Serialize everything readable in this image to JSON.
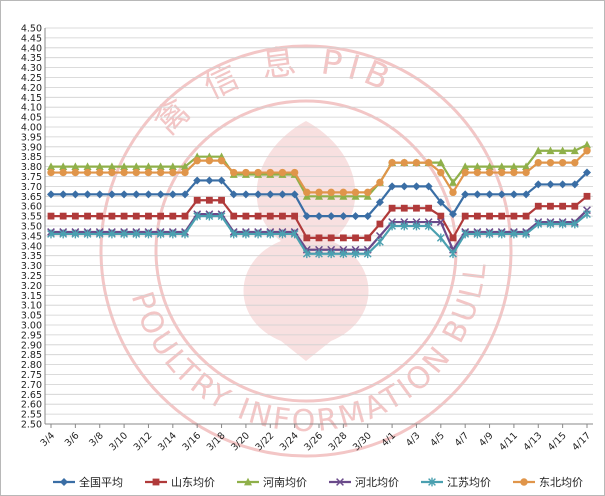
{
  "chart_data": {
    "type": "line",
    "title": "",
    "xlabel": "",
    "ylabel": "",
    "ylim": [
      2.5,
      4.5
    ],
    "ytick_step": 0.05,
    "grid": true,
    "legend": "bottom",
    "x": [
      "3/4",
      "3/5",
      "3/6",
      "3/7",
      "3/8",
      "3/9",
      "3/10",
      "3/11",
      "3/12",
      "3/13",
      "3/14",
      "3/15",
      "3/16",
      "3/17",
      "3/18",
      "3/19",
      "3/20",
      "3/21",
      "3/22",
      "3/23",
      "3/24",
      "3/25",
      "3/26",
      "3/27",
      "3/28",
      "3/29",
      "3/30",
      "3/31",
      "4/1",
      "4/2",
      "4/3",
      "4/4",
      "4/5",
      "4/6",
      "4/7",
      "4/8",
      "4/9",
      "4/10",
      "4/11",
      "4/12",
      "4/13",
      "4/14",
      "4/15",
      "4/16",
      "4/17"
    ],
    "x_tick_labels": [
      "3/4",
      "3/6",
      "3/8",
      "3/10",
      "3/12",
      "3/14",
      "3/16",
      "3/18",
      "3/20",
      "3/22",
      "3/24",
      "3/26",
      "3/28",
      "3/30",
      "4/1",
      "4/3",
      "4/5",
      "4/7",
      "4/9",
      "4/11",
      "4/13",
      "4/15",
      "4/17"
    ],
    "series": [
      {
        "name": "全国平均",
        "color": "#3a6ea5",
        "marker": "diamond",
        "values": [
          3.66,
          3.66,
          3.66,
          3.66,
          3.66,
          3.66,
          3.66,
          3.66,
          3.66,
          3.66,
          3.66,
          3.66,
          3.73,
          3.73,
          3.73,
          3.66,
          3.66,
          3.66,
          3.66,
          3.66,
          3.66,
          3.55,
          3.55,
          3.55,
          3.55,
          3.55,
          3.55,
          3.62,
          3.7,
          3.7,
          3.7,
          3.7,
          3.62,
          3.56,
          3.66,
          3.66,
          3.66,
          3.66,
          3.66,
          3.66,
          3.71,
          3.71,
          3.71,
          3.71,
          3.77
        ]
      },
      {
        "name": "山东均价",
        "color": "#b03a3a",
        "marker": "square",
        "values": [
          3.55,
          3.55,
          3.55,
          3.55,
          3.55,
          3.55,
          3.55,
          3.55,
          3.55,
          3.55,
          3.55,
          3.55,
          3.63,
          3.63,
          3.63,
          3.55,
          3.55,
          3.55,
          3.55,
          3.55,
          3.55,
          3.44,
          3.44,
          3.44,
          3.44,
          3.44,
          3.44,
          3.51,
          3.59,
          3.59,
          3.59,
          3.59,
          3.55,
          3.44,
          3.55,
          3.55,
          3.55,
          3.55,
          3.55,
          3.55,
          3.6,
          3.6,
          3.6,
          3.6,
          3.65
        ]
      },
      {
        "name": "河南均价",
        "color": "#8fb04a",
        "marker": "triangle",
        "values": [
          3.8,
          3.8,
          3.8,
          3.8,
          3.8,
          3.8,
          3.8,
          3.8,
          3.8,
          3.8,
          3.8,
          3.8,
          3.85,
          3.85,
          3.85,
          3.76,
          3.76,
          3.76,
          3.76,
          3.76,
          3.76,
          3.65,
          3.65,
          3.65,
          3.65,
          3.65,
          3.65,
          3.72,
          3.82,
          3.82,
          3.82,
          3.82,
          3.82,
          3.72,
          3.8,
          3.8,
          3.8,
          3.8,
          3.8,
          3.8,
          3.88,
          3.88,
          3.88,
          3.88,
          3.91
        ]
      },
      {
        "name": "河北均价",
        "color": "#6a4a8a",
        "marker": "x",
        "values": [
          3.47,
          3.47,
          3.47,
          3.47,
          3.47,
          3.47,
          3.47,
          3.47,
          3.47,
          3.47,
          3.47,
          3.47,
          3.56,
          3.56,
          3.56,
          3.47,
          3.47,
          3.47,
          3.47,
          3.47,
          3.47,
          3.38,
          3.38,
          3.38,
          3.38,
          3.38,
          3.38,
          3.45,
          3.52,
          3.52,
          3.52,
          3.52,
          3.52,
          3.38,
          3.47,
          3.47,
          3.47,
          3.47,
          3.47,
          3.47,
          3.52,
          3.52,
          3.52,
          3.52,
          3.58
        ]
      },
      {
        "name": "江苏均价",
        "color": "#4aa0b0",
        "marker": "star",
        "values": [
          3.46,
          3.46,
          3.46,
          3.46,
          3.46,
          3.46,
          3.46,
          3.46,
          3.46,
          3.46,
          3.46,
          3.46,
          3.55,
          3.55,
          3.55,
          3.46,
          3.46,
          3.46,
          3.46,
          3.46,
          3.46,
          3.36,
          3.36,
          3.36,
          3.36,
          3.36,
          3.36,
          3.42,
          3.5,
          3.5,
          3.5,
          3.5,
          3.44,
          3.36,
          3.46,
          3.46,
          3.46,
          3.46,
          3.46,
          3.46,
          3.51,
          3.51,
          3.51,
          3.51,
          3.56
        ]
      },
      {
        "name": "东北均价",
        "color": "#e0954a",
        "marker": "circle",
        "values": [
          3.77,
          3.77,
          3.77,
          3.77,
          3.77,
          3.77,
          3.77,
          3.77,
          3.77,
          3.77,
          3.77,
          3.77,
          3.83,
          3.83,
          3.83,
          3.77,
          3.77,
          3.77,
          3.77,
          3.77,
          3.77,
          3.67,
          3.67,
          3.67,
          3.67,
          3.67,
          3.67,
          3.72,
          3.82,
          3.82,
          3.82,
          3.82,
          3.77,
          3.67,
          3.77,
          3.77,
          3.77,
          3.77,
          3.77,
          3.77,
          3.82,
          3.82,
          3.82,
          3.82,
          3.88
        ]
      }
    ]
  },
  "watermark": {
    "text_cn": "禽 信 息 PIB",
    "text_en": "POULTRY INFORMATION BULLETIN",
    "color": "#f3c6c6"
  }
}
